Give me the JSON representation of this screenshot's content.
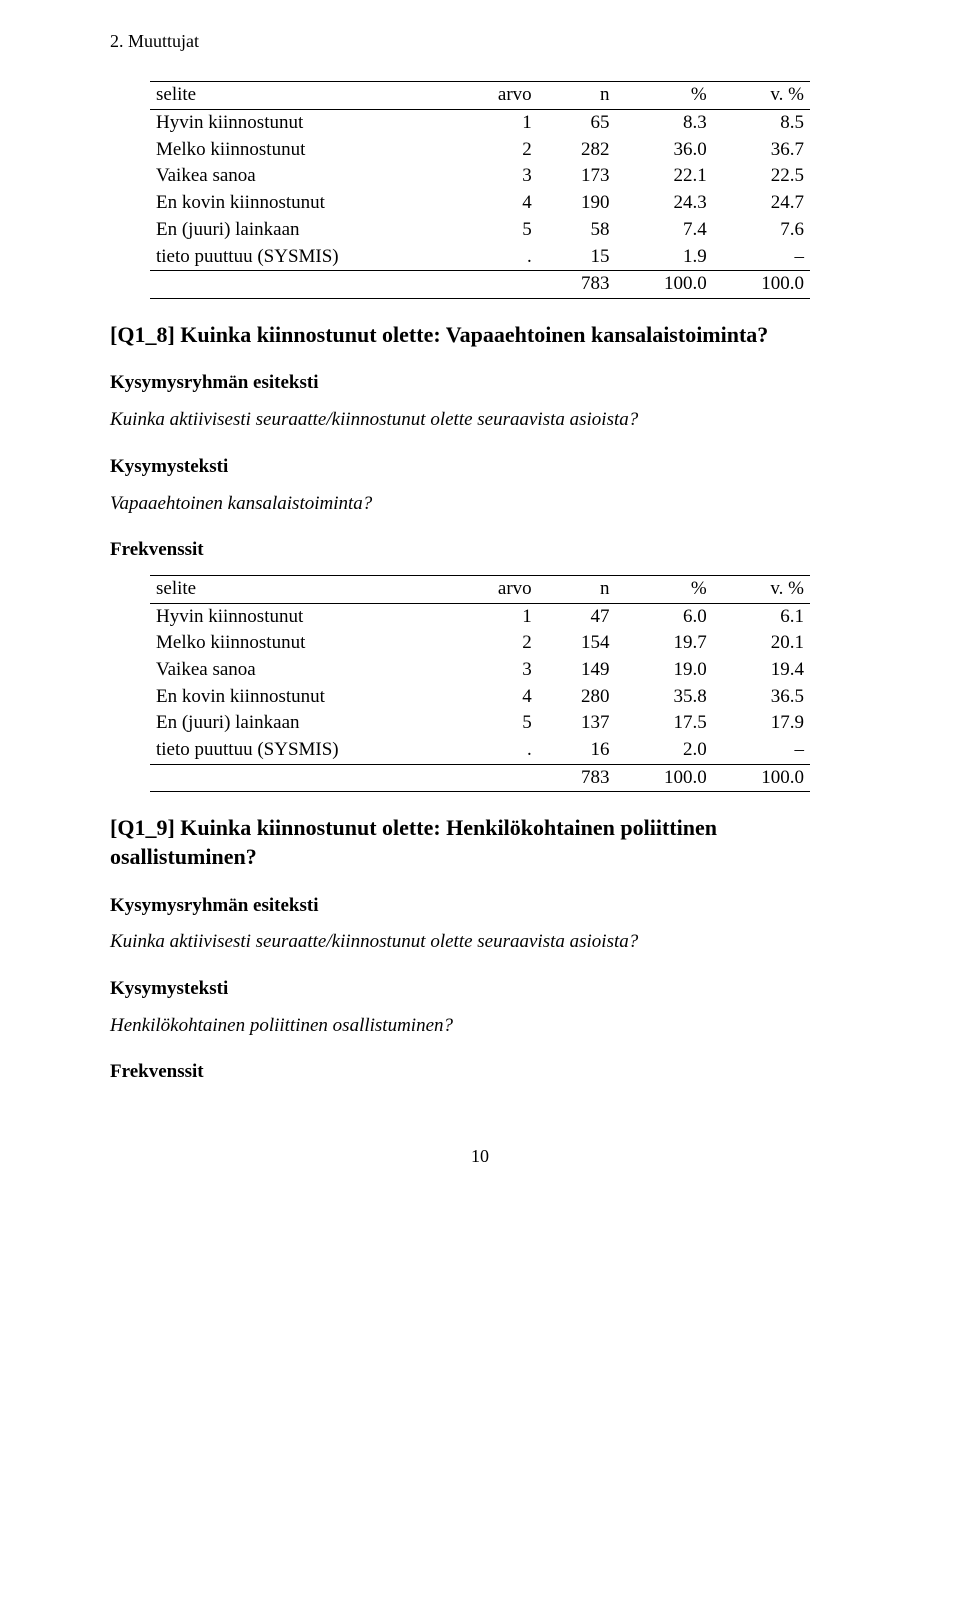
{
  "header": "2. Muuttujat",
  "table1": {
    "headers": [
      "selite",
      "arvo",
      "n",
      "%",
      "v. %"
    ],
    "rows": [
      [
        "Hyvin kiinnostunut",
        "1",
        "65",
        "8.3",
        "8.5"
      ],
      [
        "Melko kiinnostunut",
        "2",
        "282",
        "36.0",
        "36.7"
      ],
      [
        "Vaikea sanoa",
        "3",
        "173",
        "22.1",
        "22.5"
      ],
      [
        "En kovin kiinnostunut",
        "4",
        "190",
        "24.3",
        "24.7"
      ],
      [
        "En (juuri) lainkaan",
        "5",
        "58",
        "7.4",
        "7.6"
      ],
      [
        "tieto puuttuu (SYSMIS)",
        ".",
        "15",
        "1.9",
        "–"
      ]
    ],
    "total": [
      "",
      "",
      "783",
      "100.0",
      "100.0"
    ]
  },
  "section1": {
    "title": "[Q1_8] Kuinka kiinnostunut olette: Vapaaehtoinen kansalaistoiminta?",
    "groupPreHead": "Kysymysryhmän esiteksti",
    "groupPreText": "Kuinka aktiivisesti seuraatte/kiinnostunut olette seuraavista asioista?",
    "qHead": "Kysymysteksti",
    "qText": "Vapaaehtoinen kansalaistoiminta?",
    "freqHead": "Frekvenssit"
  },
  "table2": {
    "headers": [
      "selite",
      "arvo",
      "n",
      "%",
      "v. %"
    ],
    "rows": [
      [
        "Hyvin kiinnostunut",
        "1",
        "47",
        "6.0",
        "6.1"
      ],
      [
        "Melko kiinnostunut",
        "2",
        "154",
        "19.7",
        "20.1"
      ],
      [
        "Vaikea sanoa",
        "3",
        "149",
        "19.0",
        "19.4"
      ],
      [
        "En kovin kiinnostunut",
        "4",
        "280",
        "35.8",
        "36.5"
      ],
      [
        "En (juuri) lainkaan",
        "5",
        "137",
        "17.5",
        "17.9"
      ],
      [
        "tieto puuttuu (SYSMIS)",
        ".",
        "16",
        "2.0",
        "–"
      ]
    ],
    "total": [
      "",
      "",
      "783",
      "100.0",
      "100.0"
    ]
  },
  "section2": {
    "title": "[Q1_9] Kuinka kiinnostunut olette: Henkilökohtainen poliittinen osallistuminen?",
    "groupPreHead": "Kysymysryhmän esiteksti",
    "groupPreText": "Kuinka aktiivisesti seuraatte/kiinnostunut olette seuraavista asioista?",
    "qHead": "Kysymysteksti",
    "qText": "Henkilökohtainen poliittinen osallistuminen?",
    "freqHead": "Frekvenssit"
  },
  "pageNumber": "10"
}
